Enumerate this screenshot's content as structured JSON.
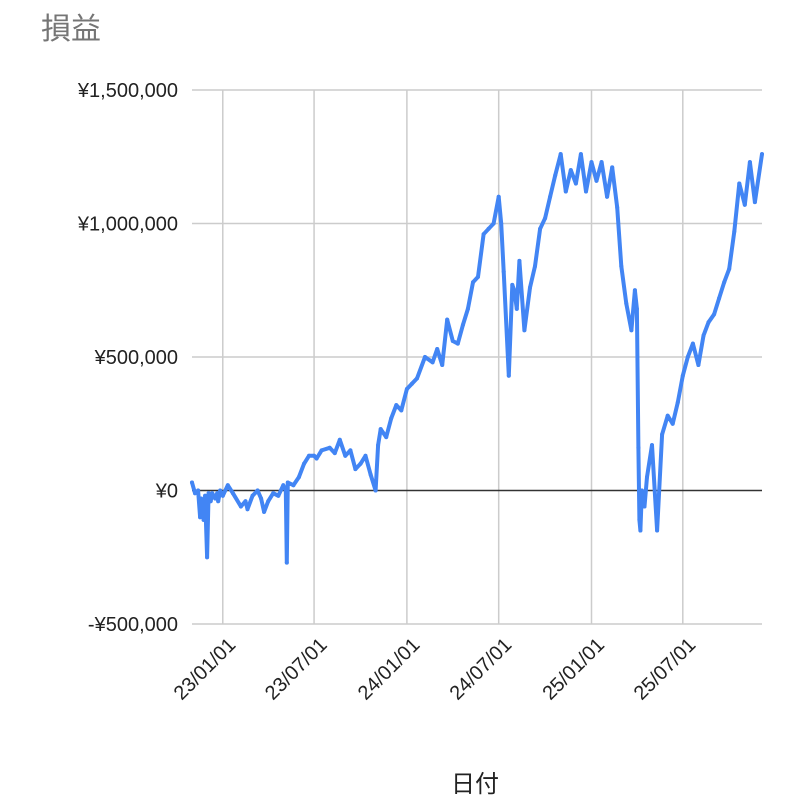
{
  "chart_data": {
    "type": "line",
    "title": "損益",
    "xlabel": "日付",
    "ylabel": "",
    "ylim": [
      -500000,
      1500000
    ],
    "y_ticks": [
      {
        "value": 1500000,
        "label": "¥1,500,000"
      },
      {
        "value": 1000000,
        "label": "¥1,000,000"
      },
      {
        "value": 500000,
        "label": "¥500,000"
      },
      {
        "value": 0,
        "label": "¥0"
      },
      {
        "value": -500000,
        "label": "-¥500,000"
      }
    ],
    "x_range": [
      "2022-11-01",
      "2025-12-05"
    ],
    "x_ticks": [
      {
        "date": "2023-01-01",
        "label": "23/01/01"
      },
      {
        "date": "2023-07-01",
        "label": "23/07/01"
      },
      {
        "date": "2024-01-01",
        "label": "24/01/01"
      },
      {
        "date": "2024-07-01",
        "label": "24/07/01"
      },
      {
        "date": "2025-01-01",
        "label": "25/01/01"
      },
      {
        "date": "2025-07-01",
        "label": "25/07/01"
      }
    ],
    "grid": true,
    "legend": "none",
    "colors": {
      "series": "#4285f4",
      "grid": "#cccccc",
      "zero_line": "#333333"
    },
    "series": [
      {
        "x": [
          "2022-11-01",
          "2022-11-07",
          "2022-11-13",
          "2022-11-17",
          "2022-11-19",
          "2022-11-24",
          "2022-11-27",
          "2022-12-01",
          "2022-12-04",
          "2022-12-08",
          "2022-12-11",
          "2022-12-17",
          "2022-12-21",
          "2022-12-23",
          "2022-12-27",
          "2023-01-01",
          "2023-01-11",
          "2023-01-21",
          "2023-02-06",
          "2023-02-15",
          "2023-02-19",
          "2023-03-01",
          "2023-03-11",
          "2023-03-18",
          "2023-03-24",
          "2023-04-01",
          "2023-04-11",
          "2023-04-21",
          "2023-05-01",
          "2023-05-06",
          "2023-05-08",
          "2023-05-10",
          "2023-05-21",
          "2023-06-01",
          "2023-06-11",
          "2023-06-21",
          "2023-07-01",
          "2023-07-06",
          "2023-07-16",
          "2023-08-01",
          "2023-08-11",
          "2023-08-21",
          "2023-09-01",
          "2023-09-11",
          "2023-09-21",
          "2023-10-01",
          "2023-10-11",
          "2023-10-21",
          "2023-10-31",
          "2023-11-05",
          "2023-11-10",
          "2023-11-21",
          "2023-12-01",
          "2023-12-11",
          "2023-12-21",
          "2024-01-01",
          "2024-01-11",
          "2024-01-21",
          "2024-02-06",
          "2024-02-21",
          "2024-03-01",
          "2024-03-11",
          "2024-03-21",
          "2024-04-01",
          "2024-04-11",
          "2024-04-21",
          "2024-05-01",
          "2024-05-11",
          "2024-05-21",
          "2024-06-01",
          "2024-06-11",
          "2024-06-21",
          "2024-07-01",
          "2024-07-06",
          "2024-07-11",
          "2024-07-21",
          "2024-07-28",
          "2024-08-01",
          "2024-08-06",
          "2024-08-11",
          "2024-08-21",
          "2024-09-01",
          "2024-09-11",
          "2024-09-21",
          "2024-10-01",
          "2024-10-11",
          "2024-10-21",
          "2024-11-01",
          "2024-11-11",
          "2024-11-21",
          "2024-12-01",
          "2024-12-11",
          "2024-12-21",
          "2025-01-01",
          "2025-01-11",
          "2025-01-21",
          "2025-02-01",
          "2025-02-11",
          "2025-02-21",
          "2025-03-01",
          "2025-03-11",
          "2025-03-21",
          "2025-03-28",
          "2025-04-01",
          "2025-04-04",
          "2025-04-06",
          "2025-04-08",
          "2025-04-11",
          "2025-04-16",
          "2025-04-21",
          "2025-05-01",
          "2025-05-11",
          "2025-05-21",
          "2025-06-01",
          "2025-06-11",
          "2025-06-21",
          "2025-07-01",
          "2025-07-11",
          "2025-07-21",
          "2025-08-01",
          "2025-08-11",
          "2025-08-21",
          "2025-09-01",
          "2025-09-11",
          "2025-09-21",
          "2025-10-01",
          "2025-10-11",
          "2025-10-21",
          "2025-11-01",
          "2025-11-11",
          "2025-11-21",
          "2025-12-05"
        ],
        "values": [
          30000,
          -10000,
          0,
          -100000,
          -30000,
          -110000,
          -20000,
          -250000,
          -10000,
          -40000,
          -10000,
          -30000,
          -10000,
          -40000,
          0,
          -20000,
          20000,
          -10000,
          -60000,
          -40000,
          -70000,
          -20000,
          0,
          -30000,
          -80000,
          -40000,
          -10000,
          -20000,
          20000,
          0,
          -270000,
          30000,
          20000,
          50000,
          100000,
          130000,
          130000,
          120000,
          150000,
          160000,
          140000,
          190000,
          130000,
          150000,
          80000,
          100000,
          130000,
          60000,
          0,
          170000,
          230000,
          200000,
          270000,
          320000,
          300000,
          380000,
          400000,
          420000,
          500000,
          480000,
          530000,
          470000,
          640000,
          560000,
          550000,
          620000,
          680000,
          780000,
          800000,
          960000,
          980000,
          1000000,
          1100000,
          1000000,
          820000,
          430000,
          770000,
          750000,
          680000,
          860000,
          600000,
          760000,
          840000,
          980000,
          1020000,
          1100000,
          1180000,
          1260000,
          1120000,
          1200000,
          1150000,
          1260000,
          1120000,
          1230000,
          1160000,
          1230000,
          1100000,
          1210000,
          1060000,
          840000,
          700000,
          600000,
          750000,
          680000,
          160000,
          -110000,
          -150000,
          0,
          -60000,
          50000,
          170000,
          -150000,
          210000,
          280000,
          250000,
          330000,
          430000,
          500000,
          550000,
          470000,
          580000,
          630000,
          660000,
          720000,
          780000,
          830000,
          970000,
          1150000,
          1070000,
          1230000,
          1080000,
          1260000
        ]
      }
    ]
  }
}
